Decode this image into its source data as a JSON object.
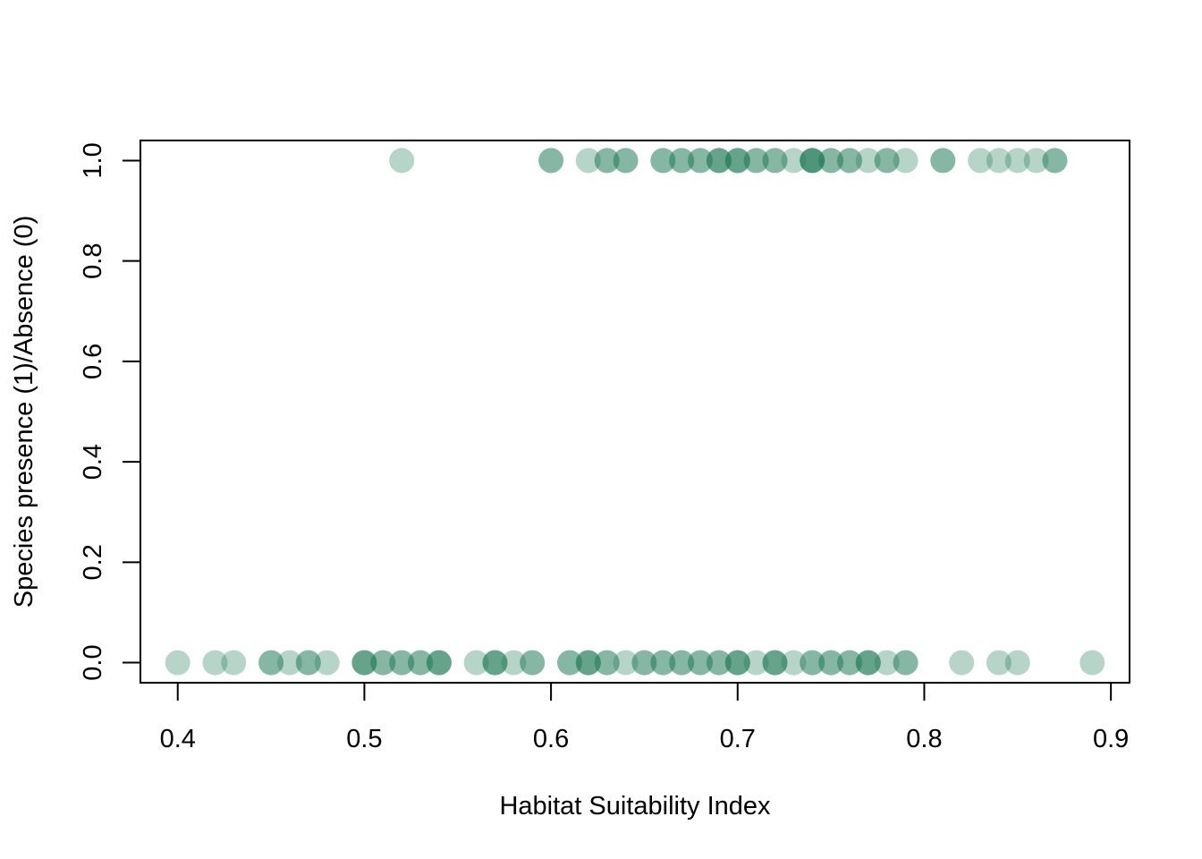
{
  "chart_data": {
    "type": "scatter",
    "title": "",
    "xlabel": "Habitat Suitability Index",
    "ylabel": "Species presence (1)/Absence (0)",
    "xlim": [
      0.38,
      0.91
    ],
    "ylim": [
      -0.04,
      1.04
    ],
    "x_ticks": [
      0.4,
      0.5,
      0.6,
      0.7,
      0.8,
      0.9
    ],
    "x_tick_labels": [
      "0.4",
      "0.5",
      "0.6",
      "0.7",
      "0.8",
      "0.9"
    ],
    "y_ticks": [
      0.0,
      0.2,
      0.4,
      0.6,
      0.8,
      1.0
    ],
    "y_tick_labels": [
      "0.0",
      "0.2",
      "0.4",
      "0.6",
      "0.8",
      "1.0"
    ],
    "grid": false,
    "point_color": "#1f7a57",
    "point_opacity": 0.32,
    "points": [
      {
        "x": 0.52,
        "y": 1
      },
      {
        "x": 0.6,
        "y": 1
      },
      {
        "x": 0.6,
        "y": 1
      },
      {
        "x": 0.62,
        "y": 1
      },
      {
        "x": 0.63,
        "y": 1
      },
      {
        "x": 0.63,
        "y": 1
      },
      {
        "x": 0.64,
        "y": 1
      },
      {
        "x": 0.64,
        "y": 1
      },
      {
        "x": 0.66,
        "y": 1
      },
      {
        "x": 0.66,
        "y": 1
      },
      {
        "x": 0.67,
        "y": 1
      },
      {
        "x": 0.67,
        "y": 1
      },
      {
        "x": 0.68,
        "y": 1
      },
      {
        "x": 0.68,
        "y": 1
      },
      {
        "x": 0.69,
        "y": 1
      },
      {
        "x": 0.69,
        "y": 1
      },
      {
        "x": 0.69,
        "y": 1
      },
      {
        "x": 0.7,
        "y": 1
      },
      {
        "x": 0.7,
        "y": 1
      },
      {
        "x": 0.7,
        "y": 1
      },
      {
        "x": 0.71,
        "y": 1
      },
      {
        "x": 0.71,
        "y": 1
      },
      {
        "x": 0.72,
        "y": 1
      },
      {
        "x": 0.72,
        "y": 1
      },
      {
        "x": 0.73,
        "y": 1
      },
      {
        "x": 0.74,
        "y": 1
      },
      {
        "x": 0.74,
        "y": 1
      },
      {
        "x": 0.74,
        "y": 1
      },
      {
        "x": 0.74,
        "y": 1
      },
      {
        "x": 0.75,
        "y": 1
      },
      {
        "x": 0.75,
        "y": 1
      },
      {
        "x": 0.76,
        "y": 1
      },
      {
        "x": 0.76,
        "y": 1
      },
      {
        "x": 0.77,
        "y": 1
      },
      {
        "x": 0.78,
        "y": 1
      },
      {
        "x": 0.78,
        "y": 1
      },
      {
        "x": 0.79,
        "y": 1
      },
      {
        "x": 0.81,
        "y": 1
      },
      {
        "x": 0.81,
        "y": 1
      },
      {
        "x": 0.83,
        "y": 1
      },
      {
        "x": 0.84,
        "y": 1
      },
      {
        "x": 0.85,
        "y": 1
      },
      {
        "x": 0.86,
        "y": 1
      },
      {
        "x": 0.87,
        "y": 1
      },
      {
        "x": 0.87,
        "y": 1
      },
      {
        "x": 0.4,
        "y": 0
      },
      {
        "x": 0.42,
        "y": 0
      },
      {
        "x": 0.43,
        "y": 0
      },
      {
        "x": 0.45,
        "y": 0
      },
      {
        "x": 0.45,
        "y": 0
      },
      {
        "x": 0.46,
        "y": 0
      },
      {
        "x": 0.47,
        "y": 0
      },
      {
        "x": 0.47,
        "y": 0
      },
      {
        "x": 0.48,
        "y": 0
      },
      {
        "x": 0.5,
        "y": 0
      },
      {
        "x": 0.5,
        "y": 0
      },
      {
        "x": 0.5,
        "y": 0
      },
      {
        "x": 0.51,
        "y": 0
      },
      {
        "x": 0.51,
        "y": 0
      },
      {
        "x": 0.52,
        "y": 0
      },
      {
        "x": 0.52,
        "y": 0
      },
      {
        "x": 0.53,
        "y": 0
      },
      {
        "x": 0.53,
        "y": 0
      },
      {
        "x": 0.54,
        "y": 0
      },
      {
        "x": 0.54,
        "y": 0
      },
      {
        "x": 0.54,
        "y": 0
      },
      {
        "x": 0.56,
        "y": 0
      },
      {
        "x": 0.57,
        "y": 0
      },
      {
        "x": 0.57,
        "y": 0
      },
      {
        "x": 0.57,
        "y": 0
      },
      {
        "x": 0.58,
        "y": 0
      },
      {
        "x": 0.59,
        "y": 0
      },
      {
        "x": 0.59,
        "y": 0
      },
      {
        "x": 0.61,
        "y": 0
      },
      {
        "x": 0.61,
        "y": 0
      },
      {
        "x": 0.62,
        "y": 0
      },
      {
        "x": 0.62,
        "y": 0
      },
      {
        "x": 0.62,
        "y": 0
      },
      {
        "x": 0.63,
        "y": 0
      },
      {
        "x": 0.63,
        "y": 0
      },
      {
        "x": 0.64,
        "y": 0
      },
      {
        "x": 0.65,
        "y": 0
      },
      {
        "x": 0.65,
        "y": 0
      },
      {
        "x": 0.66,
        "y": 0
      },
      {
        "x": 0.66,
        "y": 0
      },
      {
        "x": 0.67,
        "y": 0
      },
      {
        "x": 0.67,
        "y": 0
      },
      {
        "x": 0.68,
        "y": 0
      },
      {
        "x": 0.68,
        "y": 0
      },
      {
        "x": 0.69,
        "y": 0
      },
      {
        "x": 0.69,
        "y": 0
      },
      {
        "x": 0.7,
        "y": 0
      },
      {
        "x": 0.7,
        "y": 0
      },
      {
        "x": 0.7,
        "y": 0
      },
      {
        "x": 0.71,
        "y": 0
      },
      {
        "x": 0.72,
        "y": 0
      },
      {
        "x": 0.72,
        "y": 0
      },
      {
        "x": 0.72,
        "y": 0
      },
      {
        "x": 0.73,
        "y": 0
      },
      {
        "x": 0.74,
        "y": 0
      },
      {
        "x": 0.74,
        "y": 0
      },
      {
        "x": 0.75,
        "y": 0
      },
      {
        "x": 0.75,
        "y": 0
      },
      {
        "x": 0.76,
        "y": 0
      },
      {
        "x": 0.76,
        "y": 0
      },
      {
        "x": 0.77,
        "y": 0
      },
      {
        "x": 0.77,
        "y": 0
      },
      {
        "x": 0.77,
        "y": 0
      },
      {
        "x": 0.78,
        "y": 0
      },
      {
        "x": 0.79,
        "y": 0
      },
      {
        "x": 0.79,
        "y": 0
      },
      {
        "x": 0.82,
        "y": 0
      },
      {
        "x": 0.84,
        "y": 0
      },
      {
        "x": 0.85,
        "y": 0
      },
      {
        "x": 0.89,
        "y": 0
      }
    ]
  }
}
